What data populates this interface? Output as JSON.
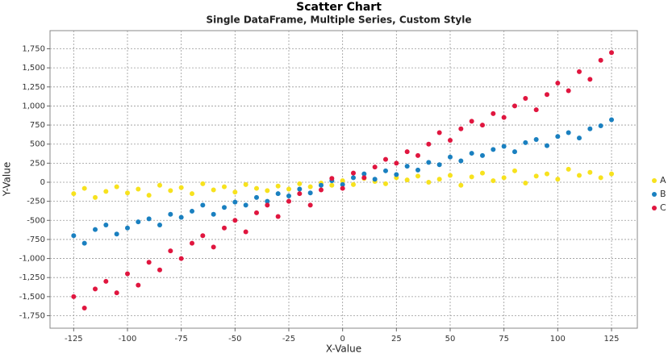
{
  "chart_data": {
    "type": "scatter",
    "title": "Scatter Chart",
    "subtitle": "Single DataFrame, Multiple Series, Custom Style",
    "x_label": "X-Value",
    "y_label": "Y-Value",
    "x": [
      -125,
      -120,
      -115,
      -110,
      -105,
      -100,
      -95,
      -90,
      -85,
      -80,
      -75,
      -70,
      -65,
      -60,
      -55,
      -50,
      -45,
      -40,
      -35,
      -30,
      -25,
      -20,
      -15,
      -10,
      -5,
      0,
      5,
      10,
      15,
      20,
      25,
      30,
      35,
      40,
      45,
      50,
      55,
      60,
      65,
      70,
      75,
      80,
      85,
      90,
      95,
      100,
      105,
      110,
      115,
      120,
      125
    ],
    "series": [
      {
        "name": "A",
        "color": "#f7e21e",
        "values": [
          -150,
          -80,
          -200,
          -120,
          -60,
          -140,
          -90,
          -170,
          -40,
          -110,
          -70,
          -150,
          -20,
          -100,
          -60,
          -130,
          -30,
          -80,
          -110,
          -50,
          -90,
          -20,
          -60,
          -10,
          -40,
          20,
          -30,
          50,
          10,
          -20,
          60,
          30,
          80,
          0,
          40,
          90,
          -40,
          70,
          120,
          20,
          60,
          150,
          -10,
          80,
          110,
          40,
          170,
          90,
          130,
          60,
          110
        ]
      },
      {
        "name": "B",
        "color": "#1a80c0",
        "values": [
          -700,
          -800,
          -620,
          -560,
          -680,
          -600,
          -520,
          -480,
          -560,
          -420,
          -460,
          -380,
          -300,
          -420,
          -330,
          -260,
          -300,
          -200,
          -250,
          -150,
          -180,
          -90,
          -140,
          -40,
          20,
          -30,
          60,
          110,
          40,
          150,
          100,
          210,
          160,
          260,
          230,
          330,
          280,
          380,
          350,
          430,
          470,
          400,
          520,
          560,
          480,
          600,
          650,
          580,
          700,
          740,
          820
        ]
      },
      {
        "name": "C",
        "color": "#e0163f",
        "values": [
          -1500,
          -1650,
          -1400,
          -1300,
          -1450,
          -1200,
          -1350,
          -1050,
          -1150,
          -900,
          -1000,
          -800,
          -700,
          -850,
          -600,
          -500,
          -650,
          -400,
          -300,
          -450,
          -250,
          -150,
          -300,
          -100,
          50,
          -80,
          120,
          60,
          200,
          300,
          250,
          400,
          350,
          500,
          650,
          550,
          700,
          800,
          750,
          900,
          850,
          1000,
          1100,
          950,
          1150,
          1300,
          1200,
          1450,
          1350,
          1600,
          1700
        ]
      }
    ],
    "xlim": [
      -136,
      137
    ],
    "ylim": [
      -1914,
      1988
    ],
    "xticks": [
      -125,
      -100,
      -75,
      -50,
      -25,
      0,
      25,
      50,
      75,
      100,
      125
    ],
    "yticks": [
      {
        "value": -1750,
        "label": "-1,750"
      },
      {
        "value": -1500,
        "label": "-1,500"
      },
      {
        "value": -1250,
        "label": "-1,250"
      },
      {
        "value": -1000,
        "label": "-1,000"
      },
      -750,
      -500,
      -250,
      0,
      250,
      500,
      750,
      {
        "value": 1000,
        "label": "1,000"
      },
      {
        "value": 1250,
        "label": "1,250"
      },
      {
        "value": 1500,
        "label": "1,500"
      },
      {
        "value": 1750,
        "label": "1,750"
      }
    ],
    "grid": true,
    "legend": "right"
  }
}
